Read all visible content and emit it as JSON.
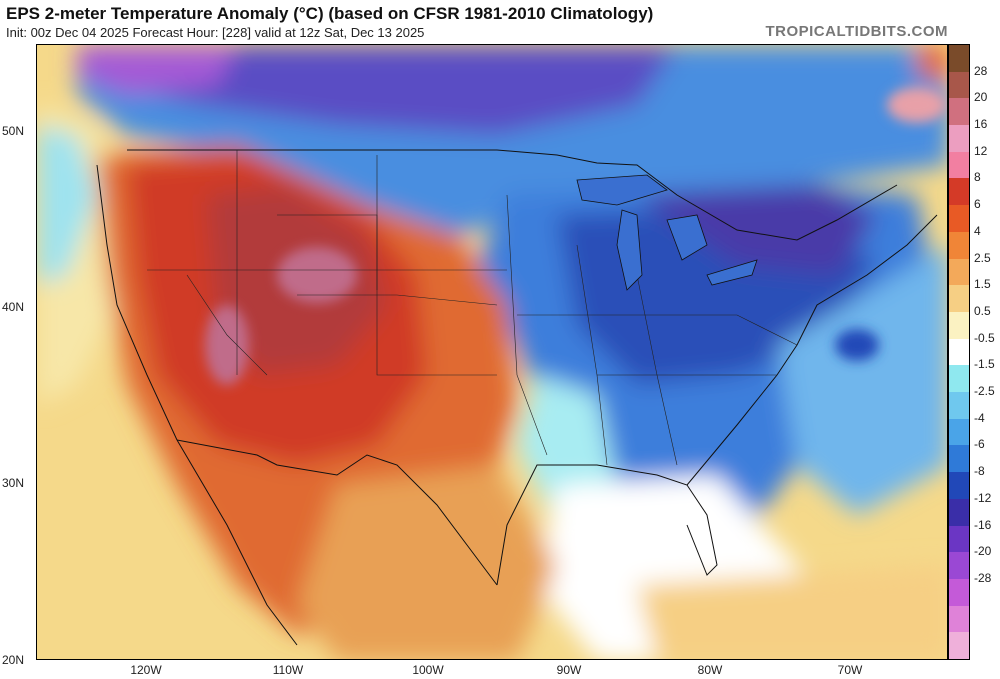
{
  "header": {
    "title": "EPS 2-meter Temperature Anomaly (°C) (based on CFSR 1981-2010 Climatology)",
    "subtitle": "Init: 00z Dec 04 2025   Forecast Hour: [228]   valid at 12z Sat, Dec 13 2025",
    "brand": "TROPICALTIDBITS.COM"
  },
  "map": {
    "latitude_labels": [
      "50N",
      "40N",
      "30N",
      "20N"
    ],
    "longitude_labels": [
      "120W",
      "110W",
      "100W",
      "90W",
      "80W",
      "70W"
    ]
  },
  "colorbar": {
    "labels": [
      "28",
      "20",
      "16",
      "12",
      "8",
      "6",
      "4",
      "2.5",
      "1.5",
      "0.5",
      "-0.5",
      "-1.5",
      "-2.5",
      "-4",
      "-6",
      "-8",
      "-12",
      "-16",
      "-20",
      "-28"
    ],
    "colors": [
      "#7a4b2a",
      "#a8574a",
      "#d0707f",
      "#ec9ec0",
      "#f27fa1",
      "#d43a27",
      "#e85a25",
      "#f08537",
      "#f3a95a",
      "#f6cf84",
      "#fbf2c2",
      "#ffffff",
      "#8fe8ef",
      "#6fc8ee",
      "#4aa4e8",
      "#2f7ad8",
      "#2148b8",
      "#3a2ea8",
      "#6b36c4",
      "#9a48d4",
      "#c45ad8",
      "#df82d8",
      "#efb0da"
    ]
  },
  "colors": {
    "ocean_white": "#ffffff",
    "cold_deep": "#2148b8",
    "cold_purple": "#4a3aa8",
    "warm_red": "#d43a27",
    "warm_pink": "#c86a85"
  }
}
